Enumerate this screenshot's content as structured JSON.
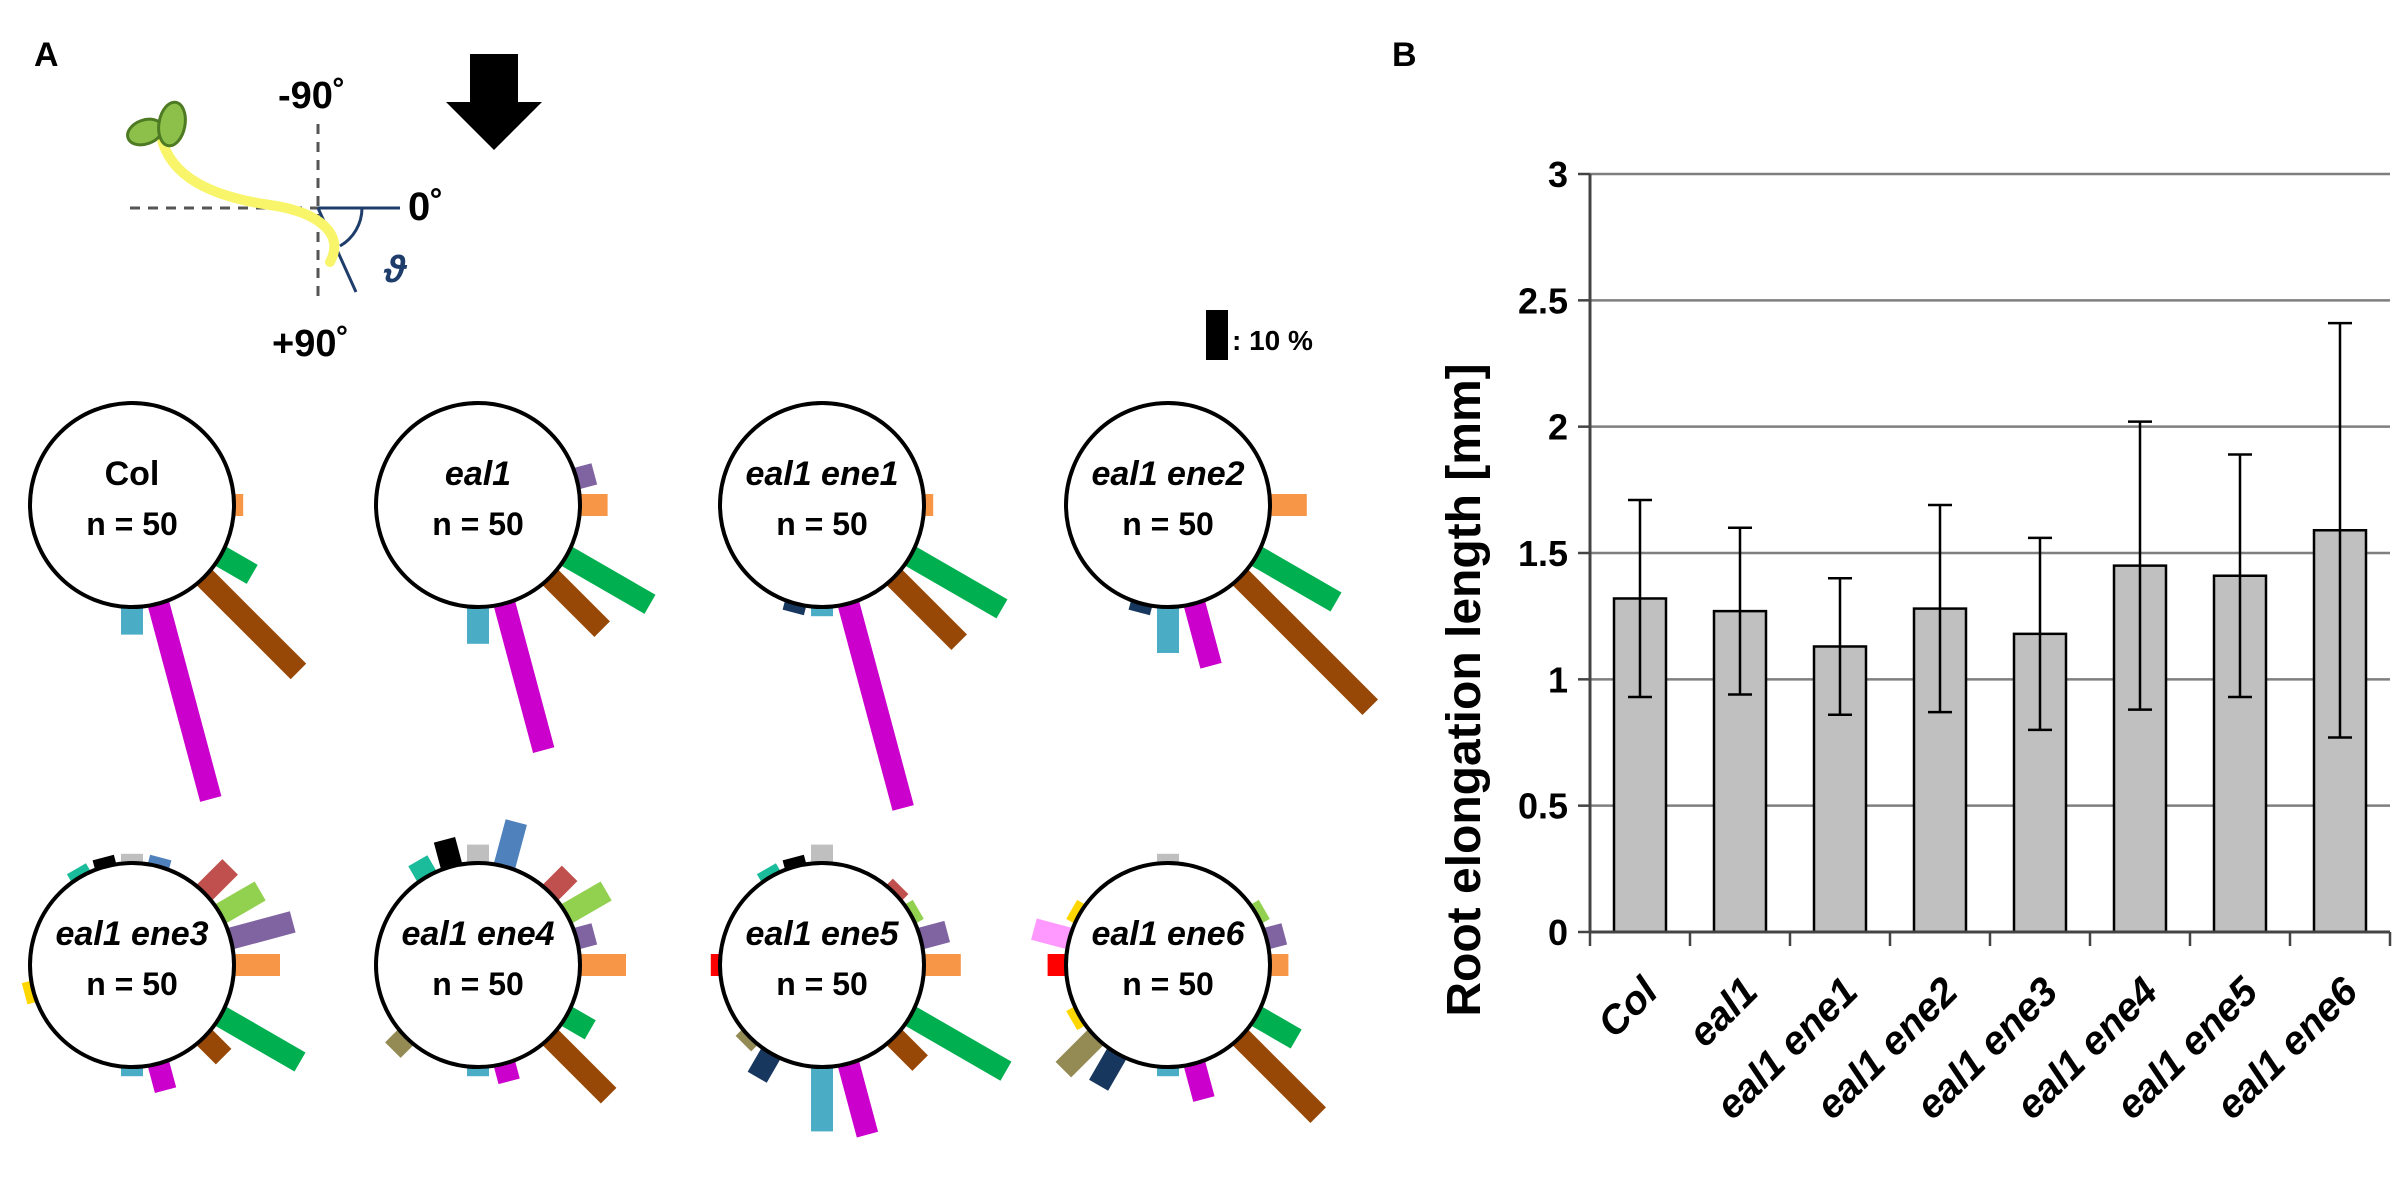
{
  "panels": {
    "a_label": "A",
    "b_label": "B"
  },
  "diagram": {
    "minus_90": "-90˚",
    "zero": "0˚",
    "plus_90": "+90˚",
    "theta": "ϑ",
    "scale_label": ": 10 %"
  },
  "colors": {
    "stem": "#f8f56a",
    "cotyledon": "#8dc04a",
    "cotyledon_edge": "#4d7a22",
    "theta": "#1f3d6b",
    "bar_fill": "#c0c0c0",
    "grid": "#7f7f7f"
  },
  "chart_data": [
    {
      "type": "polar-histogram",
      "title": "Col",
      "italic": false,
      "n_label": "n = 50",
      "bars": [
        {
          "angle_deg": 0,
          "percent": 2,
          "color": "#f79646"
        },
        {
          "angle_deg": 30,
          "percent": 8,
          "color": "#00b050"
        },
        {
          "angle_deg": 45,
          "percent": 29,
          "color": "#984806"
        },
        {
          "angle_deg": 75,
          "percent": 44,
          "color": "#cc00cc"
        },
        {
          "angle_deg": 90,
          "percent": 6,
          "color": "#4bacc6"
        }
      ]
    },
    {
      "type": "polar-histogram",
      "title": "eal1",
      "italic": true,
      "n_label": "n = 50",
      "bars": [
        {
          "angle_deg": -15,
          "percent": 4,
          "color": "#8064a2"
        },
        {
          "angle_deg": 0,
          "percent": 6,
          "color": "#f79646"
        },
        {
          "angle_deg": 30,
          "percent": 21,
          "color": "#00b050"
        },
        {
          "angle_deg": 45,
          "percent": 16,
          "color": "#984806"
        },
        {
          "angle_deg": 75,
          "percent": 33,
          "color": "#cc00cc"
        },
        {
          "angle_deg": 90,
          "percent": 8,
          "color": "#4bacc6"
        }
      ]
    },
    {
      "type": "polar-histogram",
      "title": "eal1 ene1",
      "italic": true,
      "n_label": "n = 50",
      "bars": [
        {
          "angle_deg": 0,
          "percent": 2,
          "color": "#f79646"
        },
        {
          "angle_deg": 30,
          "percent": 23,
          "color": "#00b050"
        },
        {
          "angle_deg": 45,
          "percent": 20,
          "color": "#984806"
        },
        {
          "angle_deg": 75,
          "percent": 46,
          "color": "#cc00cc"
        },
        {
          "angle_deg": 90,
          "percent": 2,
          "color": "#4bacc6"
        },
        {
          "angle_deg": 105,
          "percent": 2,
          "color": "#17375e"
        }
      ]
    },
    {
      "type": "polar-histogram",
      "title": "eal1 ene2",
      "italic": true,
      "n_label": "n = 50",
      "bars": [
        {
          "angle_deg": 0,
          "percent": 8,
          "color": "#f79646"
        },
        {
          "angle_deg": 30,
          "percent": 20,
          "color": "#00b050"
        },
        {
          "angle_deg": 45,
          "percent": 40,
          "color": "#984806"
        },
        {
          "angle_deg": 75,
          "percent": 14,
          "color": "#cc00cc"
        },
        {
          "angle_deg": 90,
          "percent": 10,
          "color": "#4bacc6"
        },
        {
          "angle_deg": 105,
          "percent": 2,
          "color": "#17375e"
        }
      ]
    },
    {
      "type": "polar-histogram",
      "title": "eal1 ene3",
      "italic": true,
      "n_label": "n = 50",
      "bars": [
        {
          "angle_deg": -120,
          "percent": 2,
          "color": "#1abc9c"
        },
        {
          "angle_deg": -105,
          "percent": 2,
          "color": "#000000"
        },
        {
          "angle_deg": -90,
          "percent": 2,
          "color": "#bfbfbf"
        },
        {
          "angle_deg": -75,
          "percent": 2,
          "color": "#4f81bd"
        },
        {
          "angle_deg": -45,
          "percent": 8,
          "color": "#c0504d"
        },
        {
          "angle_deg": -30,
          "percent": 10,
          "color": "#92d050"
        },
        {
          "angle_deg": -15,
          "percent": 14,
          "color": "#8064a2"
        },
        {
          "angle_deg": 0,
          "percent": 10,
          "color": "#f79646"
        },
        {
          "angle_deg": 30,
          "percent": 20,
          "color": "#00b050"
        },
        {
          "angle_deg": 45,
          "percent": 6,
          "color": "#984806"
        },
        {
          "angle_deg": 75,
          "percent": 6,
          "color": "#cc00cc"
        },
        {
          "angle_deg": 90,
          "percent": 2,
          "color": "#4bacc6"
        },
        {
          "angle_deg": 165,
          "percent": 2,
          "color": "#ffd700"
        }
      ]
    },
    {
      "type": "polar-histogram",
      "title": "eal1 ene4",
      "italic": true,
      "n_label": "n = 50",
      "bars": [
        {
          "angle_deg": -120,
          "percent": 4,
          "color": "#1abc9c"
        },
        {
          "angle_deg": -105,
          "percent": 6,
          "color": "#000000"
        },
        {
          "angle_deg": -90,
          "percent": 4,
          "color": "#bfbfbf"
        },
        {
          "angle_deg": -75,
          "percent": 10,
          "color": "#4f81bd"
        },
        {
          "angle_deg": -45,
          "percent": 6,
          "color": "#c0504d"
        },
        {
          "angle_deg": -30,
          "percent": 10,
          "color": "#92d050"
        },
        {
          "angle_deg": -15,
          "percent": 4,
          "color": "#8064a2"
        },
        {
          "angle_deg": 0,
          "percent": 10,
          "color": "#f79646"
        },
        {
          "angle_deg": 30,
          "percent": 6,
          "color": "#00b050"
        },
        {
          "angle_deg": 45,
          "percent": 18,
          "color": "#984806"
        },
        {
          "angle_deg": 75,
          "percent": 4,
          "color": "#cc00cc"
        },
        {
          "angle_deg": 90,
          "percent": 2,
          "color": "#4bacc6"
        },
        {
          "angle_deg": 135,
          "percent": 4,
          "color": "#948a54"
        }
      ]
    },
    {
      "type": "polar-histogram",
      "title": "eal1 ene5",
      "italic": true,
      "n_label": "n = 50",
      "bars": [
        {
          "angle_deg": -120,
          "percent": 2,
          "color": "#1abc9c"
        },
        {
          "angle_deg": -105,
          "percent": 2,
          "color": "#000000"
        },
        {
          "angle_deg": -90,
          "percent": 4,
          "color": "#bfbfbf"
        },
        {
          "angle_deg": -45,
          "percent": 2,
          "color": "#c0504d"
        },
        {
          "angle_deg": -30,
          "percent": 2,
          "color": "#92d050"
        },
        {
          "angle_deg": -15,
          "percent": 6,
          "color": "#8064a2"
        },
        {
          "angle_deg": 0,
          "percent": 8,
          "color": "#f79646"
        },
        {
          "angle_deg": 30,
          "percent": 24,
          "color": "#00b050"
        },
        {
          "angle_deg": 45,
          "percent": 8,
          "color": "#984806"
        },
        {
          "angle_deg": 75,
          "percent": 16,
          "color": "#cc00cc"
        },
        {
          "angle_deg": 90,
          "percent": 14,
          "color": "#4bacc6"
        },
        {
          "angle_deg": 120,
          "percent": 6,
          "color": "#17375e"
        },
        {
          "angle_deg": 135,
          "percent": 2,
          "color": "#948a54"
        },
        {
          "angle_deg": 180,
          "percent": 2,
          "color": "#ff0000"
        }
      ]
    },
    {
      "type": "polar-histogram",
      "title": "eal1 ene6",
      "italic": true,
      "n_label": "n = 50",
      "bars": [
        {
          "angle_deg": -90,
          "percent": 2,
          "color": "#bfbfbf"
        },
        {
          "angle_deg": -30,
          "percent": 2,
          "color": "#92d050"
        },
        {
          "angle_deg": -15,
          "percent": 4,
          "color": "#8064a2"
        },
        {
          "angle_deg": 0,
          "percent": 4,
          "color": "#f79646"
        },
        {
          "angle_deg": 30,
          "percent": 10,
          "color": "#00b050"
        },
        {
          "angle_deg": 45,
          "percent": 24,
          "color": "#984806"
        },
        {
          "angle_deg": 75,
          "percent": 8,
          "color": "#cc00cc"
        },
        {
          "angle_deg": 90,
          "percent": 2,
          "color": "#4bacc6"
        },
        {
          "angle_deg": 120,
          "percent": 8,
          "color": "#17375e"
        },
        {
          "angle_deg": 135,
          "percent": 10,
          "color": "#948a54"
        },
        {
          "angle_deg": 150,
          "percent": 2,
          "color": "#ffd700"
        },
        {
          "angle_deg": 180,
          "percent": 4,
          "color": "#ff0000"
        },
        {
          "angle_deg": 195,
          "percent": 8,
          "color": "#ff99ff"
        },
        {
          "angle_deg": 210,
          "percent": 2,
          "color": "#ffd700"
        }
      ]
    },
    {
      "type": "bar",
      "title": "",
      "xlabel": "",
      "ylabel": "Root elongation length [mm]",
      "ylim": [
        0,
        3
      ],
      "yticks": [
        "0",
        "0.5",
        "1",
        "1.5",
        "2",
        "2.5",
        "3"
      ],
      "grid": true,
      "categories": [
        "Col",
        "eal1",
        "eal1 ene1",
        "eal1 ene2",
        "eal1 ene3",
        "eal1 ene4",
        "eal1 ene5",
        "eal1 ene6"
      ],
      "values": [
        1.32,
        1.27,
        1.13,
        1.28,
        1.18,
        1.45,
        1.41,
        1.59
      ],
      "errors": [
        0.39,
        0.33,
        0.27,
        0.41,
        0.38,
        0.57,
        0.48,
        0.82
      ]
    }
  ]
}
